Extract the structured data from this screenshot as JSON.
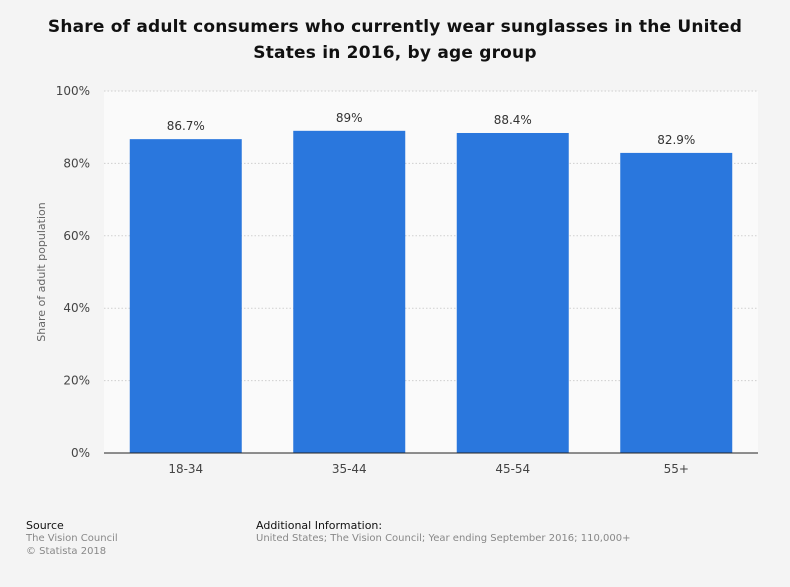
{
  "chart_data": {
    "type": "bar",
    "title": "Share of adult consumers who currently wear sunglasses in the United States in 2016, by age group",
    "categories": [
      "18-34",
      "35-44",
      "45-54",
      "55+"
    ],
    "values": [
      86.7,
      89,
      88.4,
      82.9
    ],
    "value_labels": [
      "86.7%",
      "89%",
      "88.4%",
      "82.9%"
    ],
    "xlabel": "",
    "ylabel": "Share of adult population",
    "ylim": [
      0,
      100
    ],
    "yticks": [
      0,
      20,
      40,
      60,
      80,
      100
    ],
    "ytick_labels": [
      "0%",
      "20%",
      "40%",
      "60%",
      "80%",
      "100%"
    ],
    "grid": true,
    "bar_color": "#2a77dd"
  },
  "footer": {
    "source_label": "Source",
    "source_lines": [
      "The Vision Council",
      "© Statista 2018"
    ],
    "additional_label": "Additional Information:",
    "additional_text": "United States; The Vision Council; Year ending September 2016; 110,000+"
  }
}
